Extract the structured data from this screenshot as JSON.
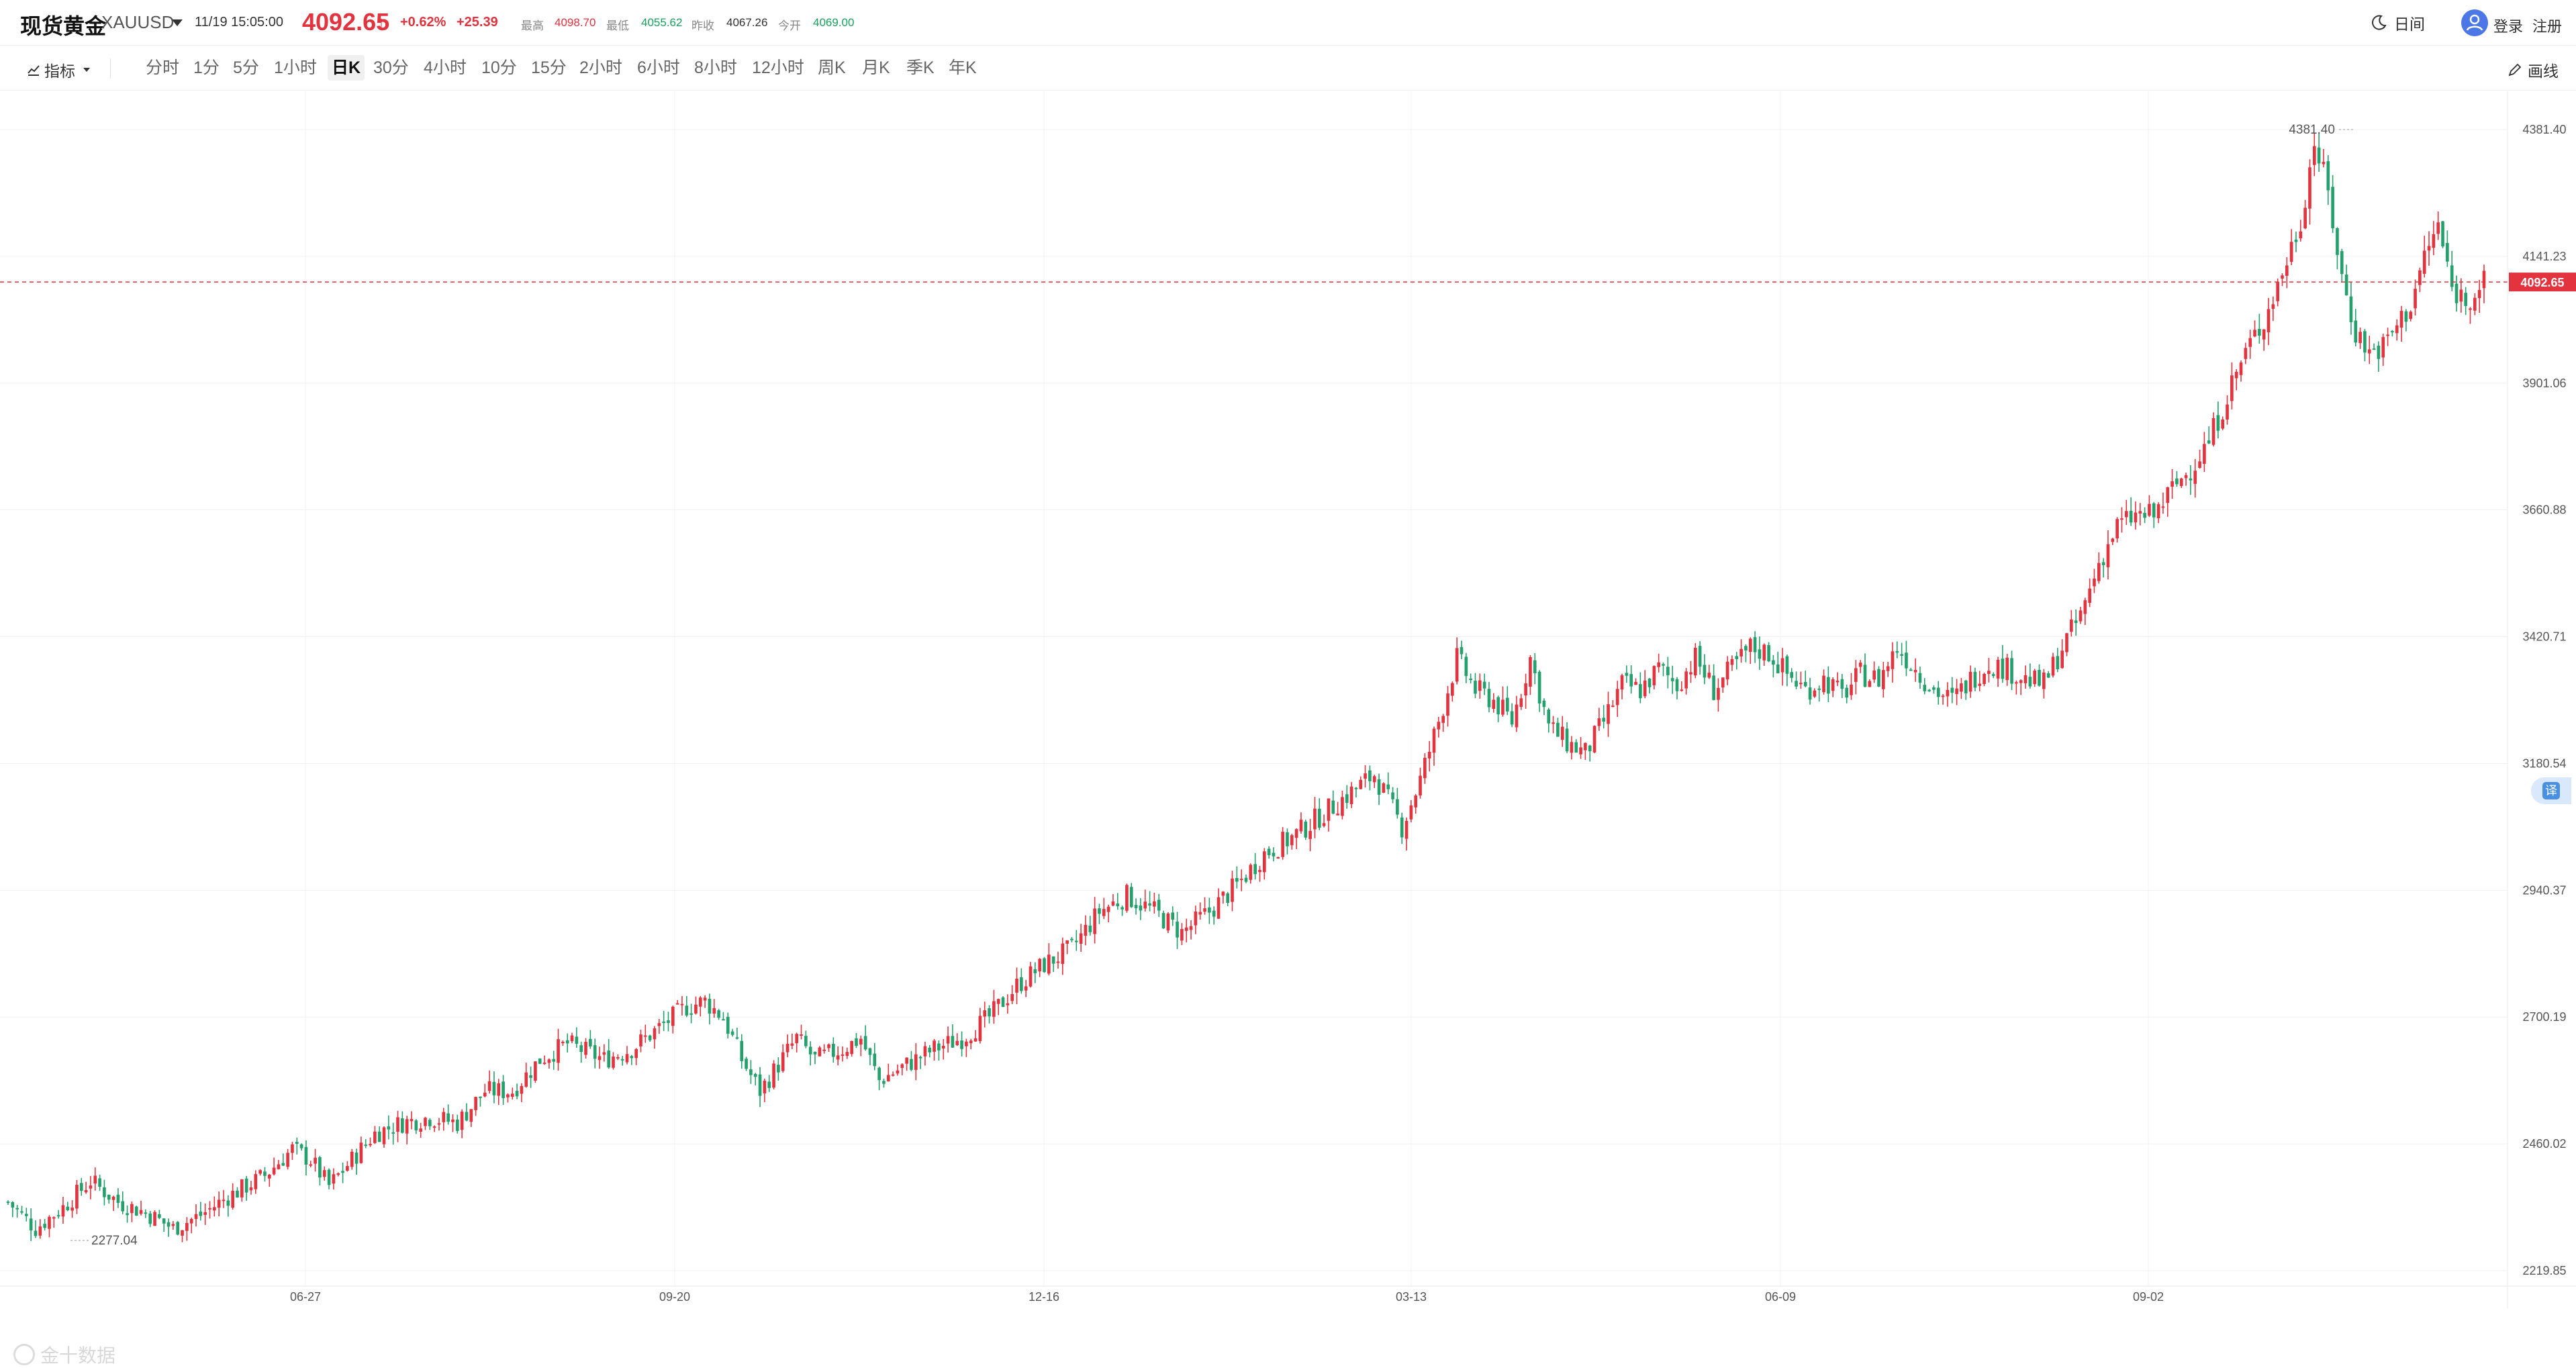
{
  "header": {
    "symbol_name": "现货黄金",
    "symbol_code": "XAUUSD",
    "quote_time": "11/19 15:05:00",
    "last_price": "4092.65",
    "change_pct": "+0.62%",
    "change_abs": "+25.39",
    "stats": [
      {
        "label": "最高",
        "value": "4098.70",
        "color": "#e2333f"
      },
      {
        "label": "最低",
        "value": "4055.62",
        "color": "#1aa05f"
      },
      {
        "label": "昨收",
        "value": "4067.26",
        "color": "#333333"
      },
      {
        "label": "今开",
        "value": "4069.00",
        "color": "#1aa05f"
      }
    ],
    "night_mode_label": "日间",
    "login_label": "登录",
    "register_label": "注册"
  },
  "toolbar": {
    "indicator_label": "指标",
    "periods": [
      "分时",
      "1分",
      "5分",
      "1小时",
      "日K",
      "30分",
      "4小时",
      "10分",
      "15分",
      "2小时",
      "6小时",
      "8小时",
      "12小时",
      "周K",
      "月K",
      "季K",
      "年K"
    ],
    "active_period": "日K",
    "draw_label": "画线"
  },
  "colors": {
    "up": "#e2333f",
    "down": "#23a06b",
    "grid": "#f1f1f1",
    "axis_text": "#555555"
  },
  "chart_data": {
    "type": "candlestick",
    "y_axis_ticks": [
      4381.4,
      4141.23,
      3901.06,
      3660.88,
      3420.71,
      3180.54,
      2940.37,
      2700.19,
      2460.02,
      2219.85
    ],
    "ylim": [
      2219.85,
      4381.4
    ],
    "x_axis_ticks": [
      "06-27",
      "09-20",
      "12-16",
      "03-13",
      "06-09",
      "09-02"
    ],
    "current_price_tag": "4092.65",
    "current_price": 4092.65,
    "max_label": "4381.40",
    "max_value": 4381.4,
    "min_label": "2277.04",
    "min_value": 2277.04,
    "close_path": [
      [
        0,
        2350
      ],
      [
        6,
        2300
      ],
      [
        12,
        2340
      ],
      [
        18,
        2390
      ],
      [
        24,
        2350
      ],
      [
        30,
        2330
      ],
      [
        36,
        2300
      ],
      [
        42,
        2325
      ],
      [
        48,
        2360
      ],
      [
        56,
        2400
      ],
      [
        62,
        2450
      ],
      [
        66,
        2430
      ],
      [
        70,
        2380
      ],
      [
        74,
        2420
      ],
      [
        80,
        2480
      ],
      [
        86,
        2500
      ],
      [
        92,
        2510
      ],
      [
        98,
        2500
      ],
      [
        104,
        2560
      ],
      [
        110,
        2560
      ],
      [
        116,
        2620
      ],
      [
        122,
        2650
      ],
      [
        130,
        2620
      ],
      [
        136,
        2640
      ],
      [
        142,
        2680
      ],
      [
        148,
        2720
      ],
      [
        152,
        2730
      ],
      [
        156,
        2700
      ],
      [
        160,
        2620
      ],
      [
        164,
        2560
      ],
      [
        168,
        2610
      ],
      [
        172,
        2660
      ],
      [
        176,
        2620
      ],
      [
        182,
        2640
      ],
      [
        186,
        2660
      ],
      [
        190,
        2580
      ],
      [
        196,
        2610
      ],
      [
        202,
        2640
      ],
      [
        208,
        2660
      ],
      [
        214,
        2700
      ],
      [
        220,
        2760
      ],
      [
        226,
        2800
      ],
      [
        232,
        2830
      ],
      [
        238,
        2900
      ],
      [
        244,
        2930
      ],
      [
        250,
        2900
      ],
      [
        256,
        2860
      ],
      [
        262,
        2900
      ],
      [
        268,
        2950
      ],
      [
        274,
        3010
      ],
      [
        280,
        3040
      ],
      [
        286,
        3080
      ],
      [
        292,
        3120
      ],
      [
        298,
        3160
      ],
      [
        304,
        3060
      ],
      [
        308,
        3150
      ],
      [
        312,
        3260
      ],
      [
        316,
        3380
      ],
      [
        320,
        3320
      ],
      [
        324,
        3300
      ],
      [
        328,
        3260
      ],
      [
        332,
        3380
      ],
      [
        336,
        3250
      ],
      [
        340,
        3220
      ],
      [
        344,
        3200
      ],
      [
        348,
        3260
      ],
      [
        352,
        3330
      ],
      [
        356,
        3320
      ],
      [
        360,
        3360
      ],
      [
        364,
        3330
      ],
      [
        368,
        3380
      ],
      [
        372,
        3320
      ],
      [
        376,
        3360
      ],
      [
        380,
        3400
      ],
      [
        384,
        3390
      ],
      [
        388,
        3350
      ],
      [
        392,
        3320
      ],
      [
        396,
        3340
      ],
      [
        400,
        3310
      ],
      [
        404,
        3350
      ],
      [
        408,
        3340
      ],
      [
        412,
        3400
      ],
      [
        416,
        3360
      ],
      [
        420,
        3320
      ],
      [
        424,
        3300
      ],
      [
        428,
        3340
      ],
      [
        432,
        3370
      ],
      [
        436,
        3360
      ],
      [
        440,
        3340
      ],
      [
        444,
        3330
      ],
      [
        448,
        3400
      ],
      [
        452,
        3460
      ],
      [
        456,
        3560
      ],
      [
        460,
        3630
      ],
      [
        464,
        3650
      ],
      [
        468,
        3650
      ],
      [
        472,
        3700
      ],
      [
        476,
        3740
      ],
      [
        480,
        3790
      ],
      [
        484,
        3880
      ],
      [
        488,
        3960
      ],
      [
        492,
        4020
      ],
      [
        496,
        4110
      ],
      [
        500,
        4210
      ],
      [
        503,
        4360
      ],
      [
        506,
        4260
      ],
      [
        509,
        4100
      ],
      [
        512,
        4000
      ],
      [
        515,
        3960
      ],
      [
        518,
        3970
      ],
      [
        521,
        4010
      ],
      [
        524,
        4050
      ],
      [
        527,
        4140
      ],
      [
        530,
        4200
      ],
      [
        533,
        4080
      ],
      [
        536,
        4060
      ],
      [
        540,
        4093
      ]
    ]
  }
}
